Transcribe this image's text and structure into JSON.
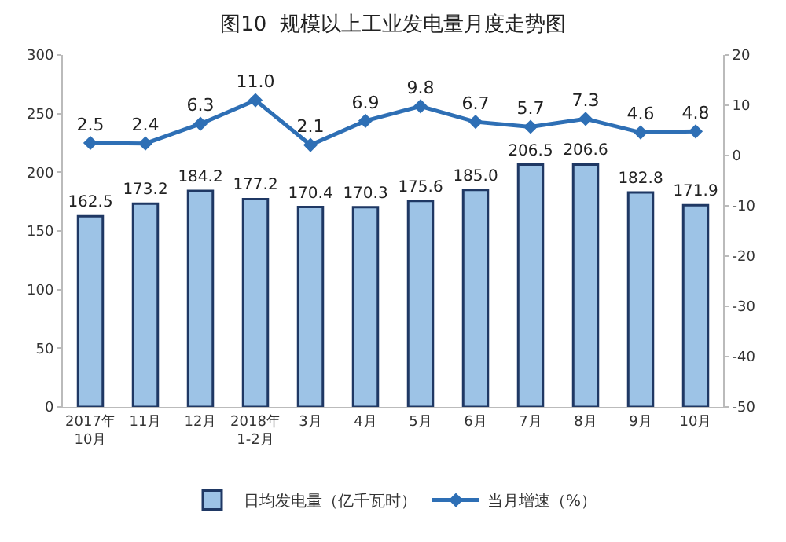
{
  "chart_data": {
    "type": "bar",
    "title": "图10  规模以上工业发电量月度走势图",
    "categories": [
      "2017年\n10月",
      "11月",
      "12月",
      "2018年\n1-2月",
      "3月",
      "4月",
      "5月",
      "6月",
      "7月",
      "8月",
      "9月",
      "10月"
    ],
    "series": [
      {
        "name": "日均发电量（亿千瓦时）",
        "color": "#9dc3e6",
        "values": [
          162.5,
          173.2,
          184.2,
          177.2,
          170.4,
          170.3,
          175.6,
          185.0,
          206.5,
          206.6,
          182.8,
          171.9
        ],
        "value_labels": [
          "162.5",
          "173.2",
          "184.2",
          "177.2",
          "170.4",
          "170.3",
          "175.6",
          "185.0",
          "206.5",
          "206.6",
          "182.8",
          "171.9"
        ]
      },
      {
        "name": "当月增速（%）",
        "type": "line",
        "axis": "y2",
        "color": "#2e6fb5",
        "marker": "diamond",
        "values": [
          2.5,
          2.4,
          6.3,
          11.0,
          2.1,
          6.9,
          9.8,
          6.7,
          5.7,
          7.3,
          4.6,
          4.8
        ],
        "value_labels": [
          "2.5",
          "2.4",
          "6.3",
          "11.0",
          "2.1",
          "6.9",
          "9.8",
          "6.7",
          "5.7",
          "7.3",
          "4.6",
          "4.8"
        ]
      }
    ],
    "ylim": [
      0,
      300
    ],
    "yticks": [
      0,
      50,
      100,
      150,
      200,
      250,
      300
    ],
    "y2lim": [
      -50,
      20
    ],
    "y2ticks": [
      -50,
      -40,
      -30,
      -20,
      -10,
      0,
      10,
      20
    ],
    "legend": "bottom"
  }
}
